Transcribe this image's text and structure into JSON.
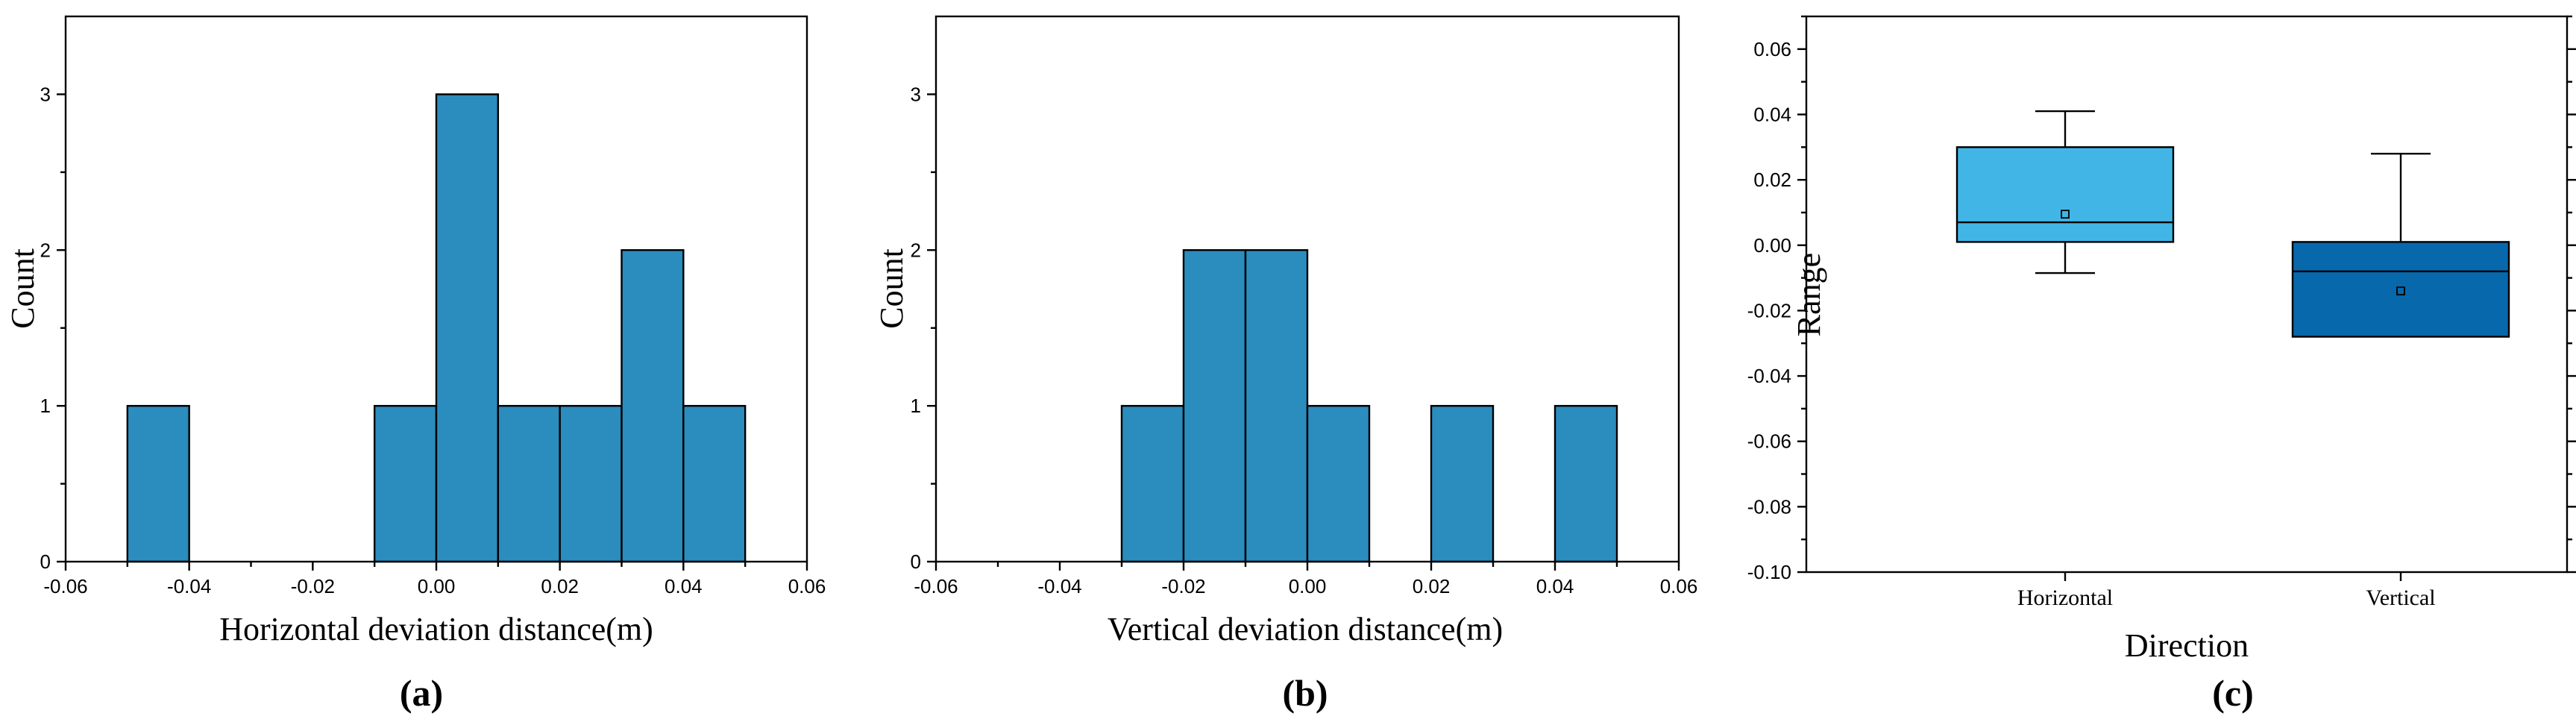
{
  "chart_data": [
    {
      "type": "bar",
      "panel_label": "(a)",
      "xlabel": "Horizontal deviation distance(m)",
      "ylabel": "Count",
      "xlim": [
        -0.06,
        0.06
      ],
      "ylim": [
        0,
        3.5
      ],
      "xticks": [
        "-0.06",
        "-0.04",
        "-0.02",
        "0.00",
        "0.02",
        "0.04",
        "0.06"
      ],
      "yticks": [
        "0",
        "1",
        "2",
        "3"
      ],
      "bar_color": "#2b8cbe",
      "bins": [
        {
          "x0": -0.05,
          "x1": -0.04,
          "count": 1
        },
        {
          "x0": -0.01,
          "x1": 0.0,
          "count": 1
        },
        {
          "x0": 0.0,
          "x1": 0.01,
          "count": 3
        },
        {
          "x0": 0.01,
          "x1": 0.02,
          "count": 1
        },
        {
          "x0": 0.02,
          "x1": 0.03,
          "count": 1
        },
        {
          "x0": 0.03,
          "x1": 0.04,
          "count": 2
        },
        {
          "x0": 0.04,
          "x1": 0.05,
          "count": 1
        }
      ]
    },
    {
      "type": "bar",
      "panel_label": "(b)",
      "xlabel": "Vertical deviation distance(m)",
      "ylabel": "Count",
      "xlim": [
        -0.06,
        0.06
      ],
      "ylim": [
        0,
        3.5
      ],
      "xticks": [
        "-0.06",
        "-0.04",
        "-0.02",
        "0.00",
        "0.02",
        "0.04",
        "0.06"
      ],
      "yticks": [
        "0",
        "1",
        "2",
        "3"
      ],
      "bar_color": "#2b8cbe",
      "bins": [
        {
          "x0": -0.03,
          "x1": -0.02,
          "count": 1
        },
        {
          "x0": -0.02,
          "x1": -0.01,
          "count": 2
        },
        {
          "x0": -0.01,
          "x1": 0.0,
          "count": 2
        },
        {
          "x0": 0.0,
          "x1": 0.01,
          "count": 1
        },
        {
          "x0": 0.02,
          "x1": 0.03,
          "count": 1
        },
        {
          "x0": 0.04,
          "x1": 0.05,
          "count": 1
        }
      ]
    },
    {
      "type": "box",
      "panel_label": "(c)",
      "xlabel": "Direction",
      "ylabel": "Range",
      "ylim": [
        -0.1,
        0.07
      ],
      "yticks": [
        "0.06",
        "0.04",
        "0.02",
        "0.00",
        "-0.02",
        "-0.04",
        "-0.06",
        "-0.08",
        "-0.10"
      ],
      "categories": [
        "Horizontal",
        "Vertical"
      ],
      "boxes": [
        {
          "category": "Horizontal",
          "whisker_low": -0.0085,
          "q1": 0.001,
          "median": 0.007,
          "q3": 0.03,
          "whisker_high": 0.041,
          "mean": 0.0095,
          "color": "#41b6e6"
        },
        {
          "category": "Vertical",
          "whisker_low": -0.028,
          "q1": -0.028,
          "median": -0.008,
          "q3": 0.001,
          "whisker_high": 0.028,
          "mean": -0.014,
          "color": "#0868ac"
        }
      ]
    }
  ]
}
